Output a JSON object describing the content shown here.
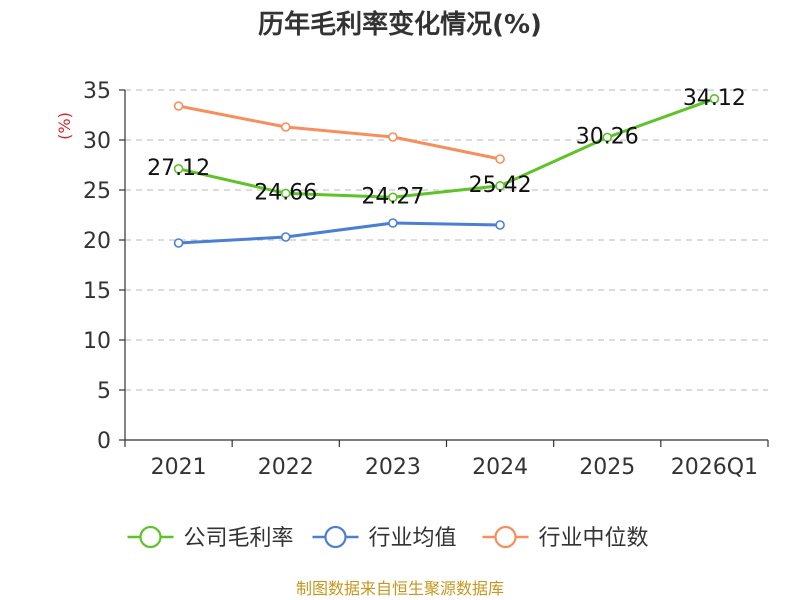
{
  "chart_data": {
    "type": "line",
    "title": "历年毛利率变化情况(%)",
    "ylabel": "(%)",
    "xlabel": "",
    "categories": [
      "2021",
      "2022",
      "2023",
      "2024",
      "2025",
      "2026Q1"
    ],
    "ylim": [
      0,
      35
    ],
    "yticks": [
      0,
      5,
      10,
      15,
      20,
      25,
      30,
      35
    ],
    "grid": true,
    "legend_position": "bottom",
    "series": [
      {
        "name": "公司毛利率",
        "color": "#5ec229",
        "show_labels": true,
        "values": [
          27.12,
          24.66,
          24.27,
          25.42,
          30.26,
          34.12
        ],
        "labels": [
          "27.12",
          "24.66",
          "24.27",
          "25.42",
          "30.26",
          "34.12"
        ]
      },
      {
        "name": "行业均值",
        "color": "#4a7fd4",
        "show_labels": false,
        "values": [
          19.7,
          20.3,
          21.7,
          21.5,
          null,
          null
        ]
      },
      {
        "name": "行业中位数",
        "color": "#f78e5b",
        "show_labels": false,
        "values": [
          33.4,
          31.3,
          30.3,
          28.1,
          null,
          null
        ]
      }
    ],
    "source": "制图数据来自恒生聚源数据库"
  }
}
